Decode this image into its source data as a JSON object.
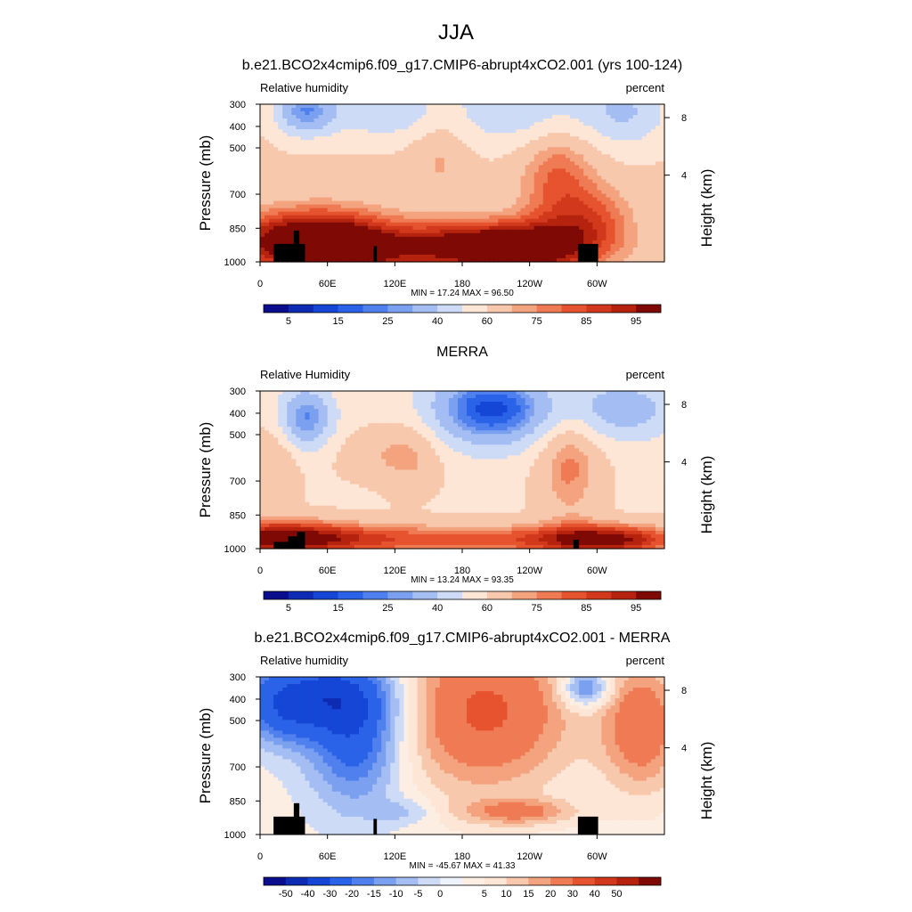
{
  "figure": {
    "title": "JJA"
  },
  "colors": {
    "rh_levels": [
      "#0a0e8c",
      "#0d2bb3",
      "#1546d6",
      "#2a62e8",
      "#4f80ee",
      "#7aa0ef",
      "#a4bef3",
      "#cddbf6",
      "#fde6d6",
      "#f8c8ad",
      "#f4a37f",
      "#ef7b54",
      "#e6532f",
      "#d2391c",
      "#b5230e",
      "#7f0a05"
    ],
    "diff_levels": [
      "#0a0e8c",
      "#0d2bb3",
      "#1546d6",
      "#2a62e8",
      "#4f80ee",
      "#7aa0ef",
      "#a4bef3",
      "#cddbf6",
      "#eef2fb",
      "#fdeee3",
      "#fde6d6",
      "#f8c8ad",
      "#f4a37f",
      "#ef7b54",
      "#e6532f",
      "#d2391c",
      "#b5230e",
      "#7f0a05"
    ],
    "topography": "#000000"
  },
  "chart_data": [
    {
      "type": "heatmap",
      "title": "b.e21.BCO2x4cmip6.f09_g17.CMIP6-abrupt4xCO2.001 (yrs 100-124)",
      "left_label": "Relative humidity",
      "right_label": "percent",
      "ylabel": "Pressure (mb)",
      "y2label": "Height (km)",
      "y_ticks": [
        "300",
        "400",
        "500",
        "700",
        "850",
        "1000"
      ],
      "y2_ticks": [
        "8",
        "4"
      ],
      "x_ticks": [
        "0",
        "60E",
        "120E",
        "180",
        "120W",
        "60W"
      ],
      "stats": "MIN =  17.24  MAX =  96.50",
      "colorbar_labels": [
        "5",
        "15",
        "25",
        "40",
        "60",
        "75",
        "85",
        "95"
      ],
      "colorbar_levels": [
        0,
        5,
        10,
        15,
        20,
        25,
        30,
        40,
        50,
        60,
        70,
        75,
        80,
        85,
        90,
        95,
        100
      ],
      "min": 17.24,
      "max": 96.5,
      "longitude_range": [
        0,
        360
      ],
      "pressure_range": [
        300,
        1000
      ],
      "palette": "rh_levels",
      "topography": [
        [
          12,
          40,
          920
        ],
        [
          30,
          35,
          860
        ],
        [
          101,
          104,
          930
        ],
        [
          283,
          301,
          920
        ]
      ]
    },
    {
      "type": "heatmap",
      "title": "MERRA",
      "left_label": "Relative Humidity",
      "right_label": "percent",
      "ylabel": "Pressure (mb)",
      "y2label": "Height (km)",
      "y_ticks": [
        "300",
        "400",
        "500",
        "700",
        "850",
        "1000"
      ],
      "y2_ticks": [
        "8",
        "4"
      ],
      "x_ticks": [
        "0",
        "60E",
        "120E",
        "180",
        "120W",
        "60W"
      ],
      "stats": "MIN =  13.24  MAX =  93.35",
      "colorbar_labels": [
        "5",
        "15",
        "25",
        "40",
        "60",
        "75",
        "85",
        "95"
      ],
      "colorbar_levels": [
        0,
        5,
        10,
        15,
        20,
        25,
        30,
        40,
        50,
        60,
        70,
        75,
        80,
        85,
        90,
        95,
        100
      ],
      "min": 13.24,
      "max": 93.35,
      "longitude_range": [
        0,
        360
      ],
      "pressure_range": [
        300,
        1000
      ],
      "palette": "rh_levels",
      "topography": [
        [
          12,
          40,
          970
        ],
        [
          25,
          34,
          945
        ],
        [
          33,
          40,
          925
        ],
        [
          279,
          284,
          960
        ]
      ]
    },
    {
      "type": "heatmap",
      "title": "b.e21.BCO2x4cmip6.f09_g17.CMIP6-abrupt4xCO2.001 - MERRA",
      "left_label": "Relative humidity",
      "right_label": "percent",
      "ylabel": "Pressure (mb)",
      "y2label": "Height (km)",
      "y_ticks": [
        "300",
        "400",
        "500",
        "700",
        "850",
        "1000"
      ],
      "y2_ticks": [
        "8",
        "4"
      ],
      "x_ticks": [
        "0",
        "60E",
        "120E",
        "180",
        "120W",
        "60W"
      ],
      "stats": "MIN = -45.67  MAX =  41.33",
      "colorbar_labels": [
        "-50",
        "-40",
        "-30",
        "-20",
        "-15",
        "-10",
        "-5",
        "0",
        "5",
        "10",
        "15",
        "20",
        "30",
        "40",
        "50"
      ],
      "colorbar_levels": [
        -60,
        -50,
        -40,
        -30,
        -20,
        -15,
        -10,
        -5,
        0,
        0,
        5,
        10,
        15,
        20,
        30,
        40,
        50,
        60
      ],
      "min": -45.67,
      "max": 41.33,
      "longitude_range": [
        0,
        360
      ],
      "pressure_range": [
        300,
        1000
      ],
      "palette": "diff_levels",
      "topography": [
        [
          12,
          40,
          920
        ],
        [
          30,
          35,
          860
        ],
        [
          101,
          104,
          930
        ],
        [
          283,
          301,
          920
        ]
      ]
    }
  ]
}
